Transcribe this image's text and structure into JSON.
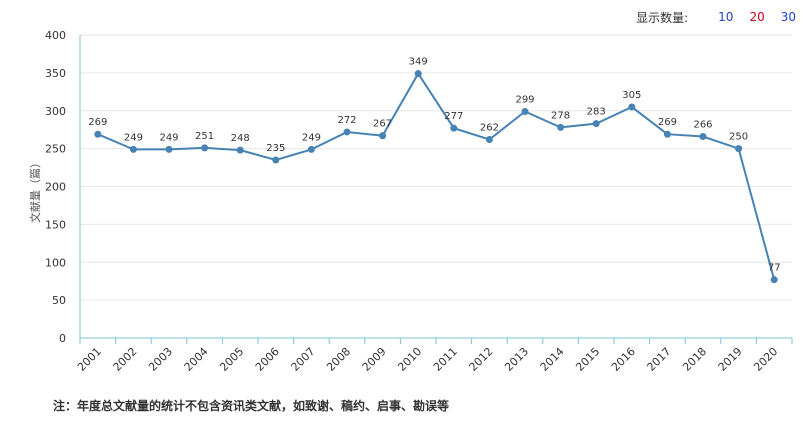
{
  "display_count": {
    "label": "显示数量:",
    "options": [
      {
        "value": "10",
        "color": "#1f3fd1"
      },
      {
        "value": "20",
        "color": "#d0021b"
      },
      {
        "value": "30",
        "color": "#1f3fd1"
      }
    ]
  },
  "footnote": "注：年度总文献量的统计不包含资讯类文献，如致谢、稿约、启事、勘误等",
  "chart_data": {
    "type": "line",
    "ylabel": "文献量（篇）",
    "ylim": [
      0,
      400
    ],
    "yticks": [
      0,
      50,
      100,
      150,
      200,
      250,
      300,
      350,
      400
    ],
    "x": [
      "2001",
      "2002",
      "2003",
      "2004",
      "2005",
      "2006",
      "2007",
      "2008",
      "2009",
      "2010",
      "2011",
      "2012",
      "2013",
      "2014",
      "2015",
      "2016",
      "2017",
      "2018",
      "2019",
      "2020"
    ],
    "values": [
      269,
      249,
      249,
      251,
      248,
      235,
      249,
      272,
      267,
      349,
      277,
      262,
      299,
      278,
      283,
      305,
      269,
      266,
      250,
      77
    ],
    "grid": true,
    "data_labels": true,
    "line_color": "#4682b4",
    "axis_color": "#7ec3d9"
  }
}
